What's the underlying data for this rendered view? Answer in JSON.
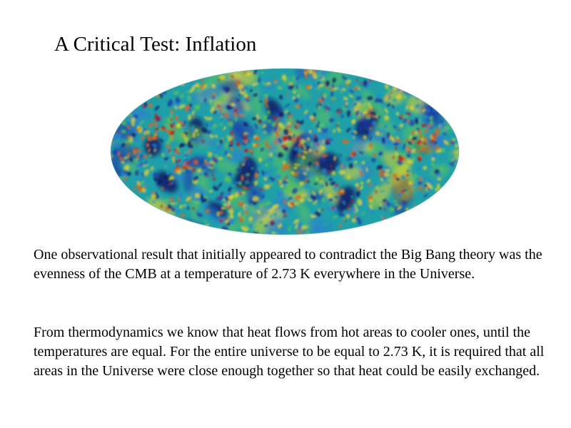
{
  "slide": {
    "title": "A Critical Test: Inflation",
    "paragraphs": [
      "One observational result that initially appeared to contradict the Big Bang theory was the evenness of the CMB at a temperature of 2.73 K everywhere in the Universe.",
      "From thermodynamics we know that heat flows from hot areas to cooler ones, until the temperatures are equal.  For the entire universe to be equal to 2.73 K, it is required that all areas in the Universe were close enough together so that heat could be easily exchanged."
    ]
  },
  "cmb_map": {
    "icon": "cmb-sky-map-image",
    "colors": {
      "base": "#1fa0a8",
      "cold_deep": "#0a1466",
      "cold": "#1a3aa8",
      "cool": "#2d7fd0",
      "warm_green": "#5cc25a",
      "warm": "#e8d22a",
      "hot": "#e0641e",
      "hottest": "#c01818"
    }
  }
}
